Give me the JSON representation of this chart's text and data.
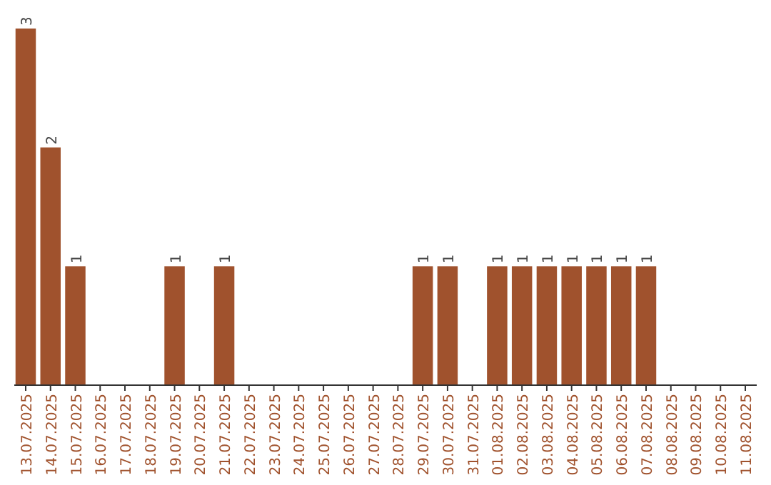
{
  "chart_data": {
    "type": "bar",
    "categories": [
      "13.07.2025",
      "14.07.2025",
      "15.07.2025",
      "16.07.2025",
      "17.07.2025",
      "18.07.2025",
      "19.07.2025",
      "20.07.2025",
      "21.07.2025",
      "22.07.2025",
      "23.07.2025",
      "24.07.2025",
      "25.07.2025",
      "26.07.2025",
      "27.07.2025",
      "28.07.2025",
      "29.07.2025",
      "30.07.2025",
      "31.07.2025",
      "01.08.2025",
      "02.08.2025",
      "03.08.2025",
      "04.08.2025",
      "05.08.2025",
      "06.08.2025",
      "07.08.2025",
      "08.08.2025",
      "09.08.2025",
      "10.08.2025",
      "11.08.2025"
    ],
    "values": [
      3,
      2,
      1,
      0,
      0,
      0,
      1,
      0,
      1,
      0,
      0,
      0,
      0,
      0,
      0,
      0,
      1,
      1,
      0,
      1,
      1,
      1,
      1,
      1,
      1,
      1,
      0,
      0,
      0,
      0
    ],
    "value_labels": [
      "3",
      "2",
      "1",
      null,
      null,
      null,
      "1",
      null,
      "1",
      null,
      null,
      null,
      null,
      null,
      null,
      null,
      "1",
      "1",
      null,
      "1",
      "1",
      "1",
      "1",
      "1",
      "1",
      "1",
      null,
      null,
      null,
      null
    ],
    "color": "#a0522d",
    "ylim": [
      0,
      3
    ]
  }
}
